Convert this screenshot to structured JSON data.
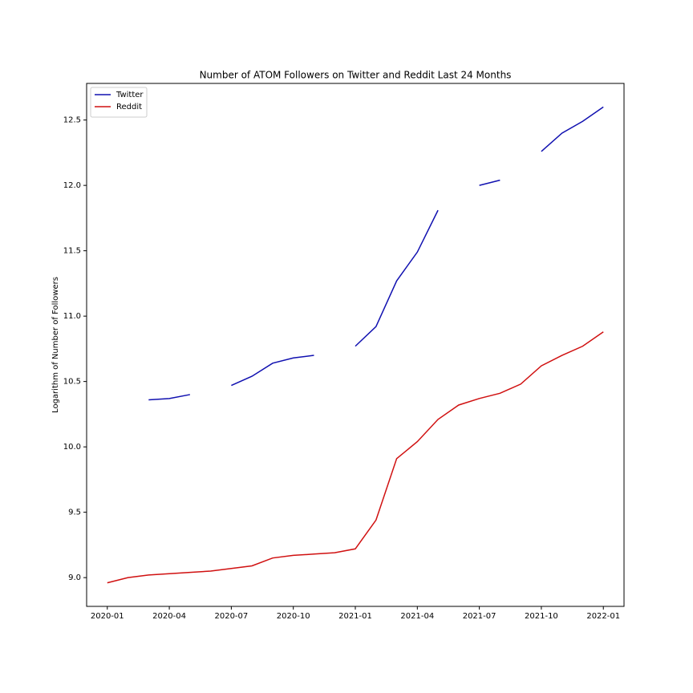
{
  "chart_data": {
    "type": "line",
    "title": "Number of ATOM Followers on Twitter and Reddit Last 24 Months",
    "y_label": "Logarithm of Number of Followers",
    "x": [
      "2020-01",
      "2020-02",
      "2020-03",
      "2020-04",
      "2020-05",
      "2020-06",
      "2020-07",
      "2020-08",
      "2020-09",
      "2020-10",
      "2020-11",
      "2020-12",
      "2021-01",
      "2021-02",
      "2021-03",
      "2021-04",
      "2021-05",
      "2021-06",
      "2021-07",
      "2021-08",
      "2021-09",
      "2021-10",
      "2021-11",
      "2021-12",
      "2022-01"
    ],
    "series": [
      {
        "name": "Twitter",
        "color": "#1010b0",
        "values": [
          null,
          null,
          10.36,
          10.37,
          10.4,
          null,
          10.47,
          10.54,
          10.64,
          10.68,
          10.7,
          null,
          10.77,
          10.92,
          11.27,
          11.49,
          11.81,
          null,
          12.0,
          12.04,
          null,
          12.26,
          12.4,
          12.49,
          12.6
        ]
      },
      {
        "name": "Reddit",
        "color": "#d01010",
        "values": [
          8.96,
          9.0,
          9.02,
          9.03,
          9.04,
          9.05,
          9.07,
          9.09,
          9.15,
          9.17,
          9.18,
          9.19,
          9.22,
          9.44,
          9.91,
          10.04,
          10.21,
          10.32,
          10.37,
          10.41,
          10.48,
          10.62,
          10.7,
          10.77,
          10.88
        ]
      }
    ],
    "xlim": [
      "2019-12",
      "2022-02"
    ],
    "xticks": [
      "2020-01",
      "2020-04",
      "2020-07",
      "2020-10",
      "2021-01",
      "2021-04",
      "2021-07",
      "2021-10",
      "2022-01"
    ],
    "ylim": [
      8.78,
      12.78
    ],
    "yticks": [
      {
        "value": 9,
        "label": "9.0"
      },
      9.5,
      {
        "value": 10,
        "label": "10.0"
      },
      10.5,
      {
        "value": 11,
        "label": "11.0"
      },
      11.5,
      {
        "value": 12,
        "label": "12.0"
      },
      12.5
    ],
    "legend": "upper left"
  }
}
